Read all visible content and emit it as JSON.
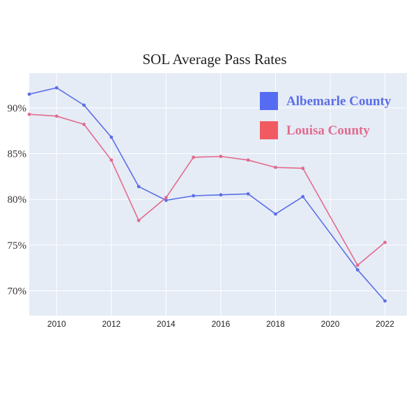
{
  "chart_data": {
    "type": "line",
    "title": "SOL Average Pass Rates",
    "xlabel": "",
    "ylabel": "",
    "xlim": [
      2009,
      2022.8
    ],
    "ylim": [
      67.3,
      93.8
    ],
    "x_ticks": [
      2010,
      2012,
      2014,
      2016,
      2018,
      2020,
      2022
    ],
    "y_ticks": [
      70,
      75,
      80,
      85,
      90
    ],
    "y_tick_labels": [
      "70%",
      "75%",
      "80%",
      "85%",
      "90%"
    ],
    "grid": true,
    "legend_position": "top-right",
    "series": [
      {
        "name": "Albemarle County",
        "color": "#5b6ee8",
        "legend_color": "#556cf2",
        "x": [
          2009,
          2010,
          2011,
          2012,
          2013,
          2014,
          2015,
          2016,
          2017,
          2018,
          2019,
          2021,
          2022
        ],
        "values": [
          91.5,
          92.2,
          90.3,
          86.8,
          81.4,
          79.9,
          80.4,
          80.5,
          80.6,
          78.4,
          80.3,
          72.3,
          68.9
        ]
      },
      {
        "name": "Louisa County",
        "color": "#e36b8e",
        "legend_color": "#f25a62",
        "x": [
          2009,
          2010,
          2011,
          2012,
          2013,
          2014,
          2015,
          2016,
          2017,
          2018,
          2019,
          2021,
          2022
        ],
        "values": [
          89.3,
          89.1,
          88.2,
          84.3,
          77.7,
          80.2,
          84.6,
          84.7,
          84.3,
          83.5,
          83.4,
          72.8,
          75.3
        ]
      }
    ]
  }
}
